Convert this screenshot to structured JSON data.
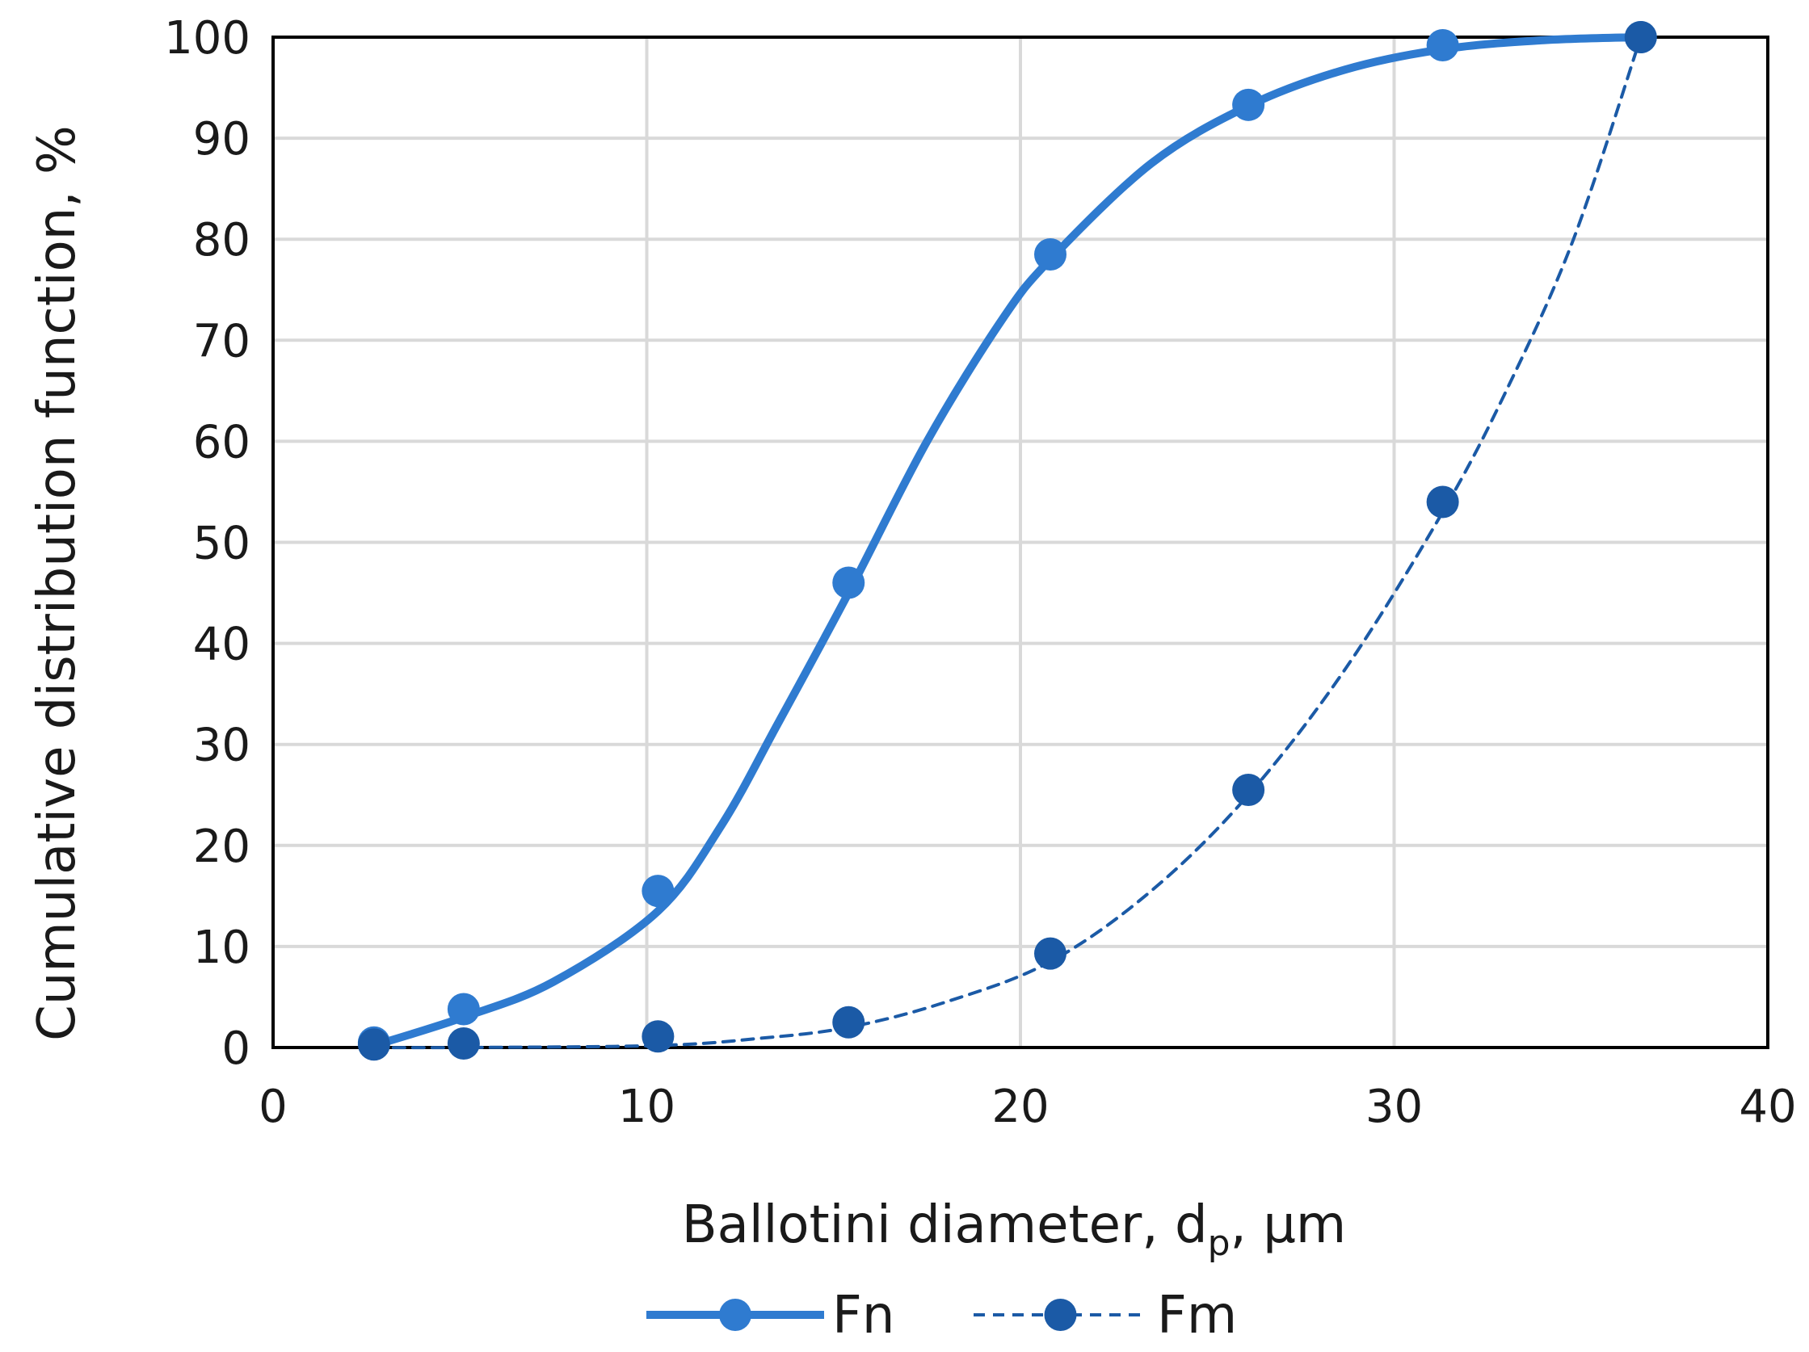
{
  "chart_data": {
    "type": "scatter",
    "xlabel": "Ballotini diameter, d",
    "xlabel_sub": "p",
    "xlabel_suffix": ", µm",
    "ylabel": "Cumulative distribution function,  %",
    "xlim": [
      0,
      40
    ],
    "ylim": [
      0,
      100
    ],
    "xticks": [
      0,
      10,
      20,
      30,
      40
    ],
    "yticks": [
      0,
      10,
      20,
      30,
      40,
      50,
      60,
      70,
      80,
      90,
      100
    ],
    "grid": true,
    "legend_position": "bottom",
    "series": [
      {
        "name": "Fn",
        "color": "#2f7bd0",
        "line_style": "solid",
        "points": [
          {
            "x": 2.7,
            "y": 0.5
          },
          {
            "x": 5.1,
            "y": 3.8
          },
          {
            "x": 10.3,
            "y": 15.5
          },
          {
            "x": 15.4,
            "y": 46
          },
          {
            "x": 20.8,
            "y": 78.5
          },
          {
            "x": 26.1,
            "y": 93.3
          },
          {
            "x": 31.3,
            "y": 99.2
          },
          {
            "x": 36.6,
            "y": 100
          }
        ],
        "curve": [
          {
            "x": 2.7,
            "y": 0.2
          },
          {
            "x": 5.1,
            "y": 3.0
          },
          {
            "x": 7.5,
            "y": 6.5
          },
          {
            "x": 10.3,
            "y": 13.5
          },
          {
            "x": 12.0,
            "y": 22
          },
          {
            "x": 13.5,
            "y": 32
          },
          {
            "x": 15.4,
            "y": 45
          },
          {
            "x": 17.5,
            "y": 60
          },
          {
            "x": 19.5,
            "y": 72
          },
          {
            "x": 20.8,
            "y": 78
          },
          {
            "x": 23.5,
            "y": 87.5
          },
          {
            "x": 26.1,
            "y": 93.2
          },
          {
            "x": 28.7,
            "y": 96.8
          },
          {
            "x": 31.3,
            "y": 98.8
          },
          {
            "x": 34.0,
            "y": 99.7
          },
          {
            "x": 36.6,
            "y": 100
          }
        ]
      },
      {
        "name": "Fm",
        "color": "#1b5aa6",
        "line_style": "dashed",
        "points": [
          {
            "x": 2.7,
            "y": 0.3
          },
          {
            "x": 5.1,
            "y": 0.4
          },
          {
            "x": 10.3,
            "y": 1.1
          },
          {
            "x": 15.4,
            "y": 2.5
          },
          {
            "x": 20.8,
            "y": 9.3
          },
          {
            "x": 26.1,
            "y": 25.5
          },
          {
            "x": 31.3,
            "y": 54
          },
          {
            "x": 36.6,
            "y": 100
          }
        ],
        "curve": [
          {
            "x": 2.7,
            "y": 0.0
          },
          {
            "x": 5.1,
            "y": 0.0
          },
          {
            "x": 10.3,
            "y": 0.2
          },
          {
            "x": 13.0,
            "y": 0.9
          },
          {
            "x": 15.4,
            "y": 2.0
          },
          {
            "x": 18.0,
            "y": 4.5
          },
          {
            "x": 20.8,
            "y": 8.5
          },
          {
            "x": 23.5,
            "y": 15.5
          },
          {
            "x": 26.1,
            "y": 25.0
          },
          {
            "x": 28.7,
            "y": 37.5
          },
          {
            "x": 31.3,
            "y": 53.0
          },
          {
            "x": 33.0,
            "y": 65.0
          },
          {
            "x": 34.8,
            "y": 80.0
          },
          {
            "x": 36.6,
            "y": 100
          }
        ]
      }
    ]
  }
}
